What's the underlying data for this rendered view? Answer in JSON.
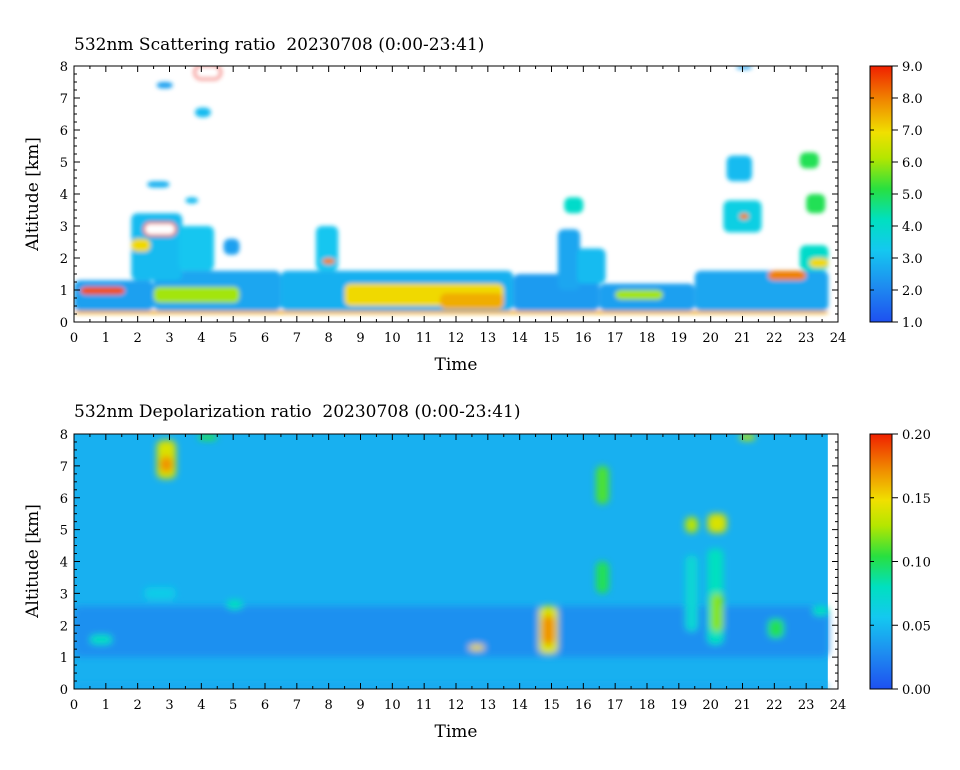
{
  "chart_data": [
    {
      "type": "heatmap",
      "title": "532nm Scattering ratio  20230708 (0:00-23:41)",
      "xlabel": "Time",
      "ylabel": "Altitude [km]",
      "xlim": [
        0,
        24
      ],
      "ylim": [
        0,
        8
      ],
      "x_ticks": [
        "0",
        "1",
        "2",
        "3",
        "4",
        "5",
        "6",
        "7",
        "8",
        "9",
        "10",
        "11",
        "12",
        "13",
        "14",
        "15",
        "16",
        "17",
        "18",
        "19",
        "20",
        "21",
        "22",
        "23",
        "24"
      ],
      "y_ticks": [
        "0",
        "1",
        "2",
        "3",
        "4",
        "5",
        "6",
        "7",
        "8"
      ],
      "data_end_time": 23.68,
      "colorbar": {
        "min": 1.0,
        "max": 9.0,
        "ticks": [
          "1.0",
          "2.0",
          "3.0",
          "4.0",
          "5.0",
          "6.0",
          "7.0",
          "8.0",
          "9.0"
        ]
      },
      "colors": {
        "background": "#ffffff",
        "low": "#1e50f0",
        "high": "#f02000"
      },
      "features": [
        {
          "t0": 0,
          "t1": 23.7,
          "z0": 0.25,
          "z1": 0.35,
          "value": 7.5
        },
        {
          "t0": 0,
          "t1": 2.5,
          "z0": 0.35,
          "z1": 1.3,
          "value": 2.5
        },
        {
          "t0": 0.2,
          "t1": 1.6,
          "z0": 0.85,
          "z1": 1.1,
          "value": 8.5
        },
        {
          "t0": 2.5,
          "t1": 6.5,
          "z0": 0.35,
          "z1": 1.6,
          "value": 2.6
        },
        {
          "t0": 2.5,
          "t1": 5.2,
          "z0": 0.6,
          "z1": 1.1,
          "value": 6.0
        },
        {
          "t0": 6.5,
          "t1": 13.8,
          "z0": 0.35,
          "z1": 1.6,
          "value": 2.8
        },
        {
          "t0": 8.5,
          "t1": 13.5,
          "z0": 0.5,
          "z1": 1.2,
          "value": 7.0
        },
        {
          "t0": 11.5,
          "t1": 13.5,
          "z0": 0.4,
          "z1": 0.9,
          "value": 7.5
        },
        {
          "t0": 13.8,
          "t1": 16.5,
          "z0": 0.35,
          "z1": 1.5,
          "value": 2.4
        },
        {
          "t0": 16.5,
          "t1": 19.5,
          "z0": 0.35,
          "z1": 1.2,
          "value": 2.5
        },
        {
          "t0": 17.0,
          "t1": 18.5,
          "z0": 0.7,
          "z1": 1.0,
          "value": 6.0
        },
        {
          "t0": 19.5,
          "t1": 23.7,
          "z0": 0.35,
          "z1": 1.6,
          "value": 2.6
        },
        {
          "t0": 21.8,
          "t1": 23.0,
          "z0": 1.3,
          "z1": 1.6,
          "value": 8.0
        },
        {
          "t0": 1.8,
          "t1": 3.4,
          "z0": 1.3,
          "z1": 3.4,
          "value": 3.0
        },
        {
          "t0": 2.2,
          "t1": 3.2,
          "z0": 2.7,
          "z1": 3.1,
          "value": 9.0
        },
        {
          "t0": 1.8,
          "t1": 2.4,
          "z0": 2.2,
          "z1": 2.6,
          "value": 7.0
        },
        {
          "t0": 3.3,
          "t1": 4.4,
          "z0": 1.6,
          "z1": 3.0,
          "value": 3.2
        },
        {
          "t0": 2.3,
          "t1": 3.0,
          "z0": 4.2,
          "z1": 4.4,
          "value": 2.8
        },
        {
          "t0": 3.5,
          "t1": 3.9,
          "z0": 3.7,
          "z1": 3.9,
          "value": 3.0
        },
        {
          "t0": 4.7,
          "t1": 5.2,
          "z0": 2.1,
          "z1": 2.6,
          "value": 2.5
        },
        {
          "t0": 7.6,
          "t1": 8.3,
          "z0": 1.6,
          "z1": 3.0,
          "value": 3.2
        },
        {
          "t0": 7.8,
          "t1": 8.2,
          "z0": 1.8,
          "z1": 2.0,
          "value": 8.0
        },
        {
          "t0": 2.6,
          "t1": 3.1,
          "z0": 7.3,
          "z1": 7.5,
          "value": 2.5
        },
        {
          "t0": 3.8,
          "t1": 4.6,
          "z0": 7.6,
          "z1": 8.0,
          "value": 9.0
        },
        {
          "t0": 3.8,
          "t1": 4.3,
          "z0": 6.4,
          "z1": 6.7,
          "value": 3.0
        },
        {
          "t0": 15.2,
          "t1": 15.9,
          "z0": 1.0,
          "z1": 2.9,
          "value": 2.6
        },
        {
          "t0": 15.4,
          "t1": 16.0,
          "z0": 3.4,
          "z1": 3.9,
          "value": 4.0
        },
        {
          "t0": 15.8,
          "t1": 16.7,
          "z0": 1.2,
          "z1": 2.3,
          "value": 3.0
        },
        {
          "t0": 20.5,
          "t1": 21.3,
          "z0": 4.4,
          "z1": 5.2,
          "value": 3.0
        },
        {
          "t0": 20.4,
          "t1": 21.6,
          "z0": 2.8,
          "z1": 3.8,
          "value": 3.5
        },
        {
          "t0": 20.9,
          "t1": 21.2,
          "z0": 3.2,
          "z1": 3.4,
          "value": 8.0
        },
        {
          "t0": 22.8,
          "t1": 23.4,
          "z0": 4.8,
          "z1": 5.3,
          "value": 5.0
        },
        {
          "t0": 23.0,
          "t1": 23.6,
          "z0": 3.4,
          "z1": 4.0,
          "value": 5.0
        },
        {
          "t0": 22.8,
          "t1": 23.7,
          "z0": 1.6,
          "z1": 2.4,
          "value": 4.0
        },
        {
          "t0": 23.1,
          "t1": 23.7,
          "z0": 1.7,
          "z1": 2.0,
          "value": 7.0
        },
        {
          "t0": 20.8,
          "t1": 21.3,
          "z0": 7.9,
          "z1": 8.0,
          "value": 2.5
        }
      ]
    },
    {
      "type": "heatmap",
      "title": "532nm Depolarization ratio  20230708 (0:00-23:41)",
      "xlabel": "Time",
      "ylabel": "Altitude [km]",
      "xlim": [
        0,
        24
      ],
      "ylim": [
        0,
        8
      ],
      "x_ticks": [
        "0",
        "1",
        "2",
        "3",
        "4",
        "5",
        "6",
        "7",
        "8",
        "9",
        "10",
        "11",
        "12",
        "13",
        "14",
        "15",
        "16",
        "17",
        "18",
        "19",
        "20",
        "21",
        "22",
        "23",
        "24"
      ],
      "y_ticks": [
        "0",
        "1",
        "2",
        "3",
        "4",
        "5",
        "6",
        "7",
        "8"
      ],
      "data_end_time": 23.68,
      "colorbar": {
        "min": 0.0,
        "max": 0.2,
        "ticks": [
          "0.00",
          "0.05",
          "0.10",
          "0.15",
          "0.20"
        ]
      },
      "colors": {
        "background": "#ffffff",
        "low": "#1e50f0",
        "high": "#f02000"
      },
      "background_value": 0.045,
      "features": [
        {
          "t0": 0,
          "t1": 23.7,
          "z0": 0.0,
          "z1": 0.15,
          "value": 0.04
        },
        {
          "t0": 0,
          "t1": 23.7,
          "z0": 1.0,
          "z1": 2.6,
          "value": 0.03
        },
        {
          "t0": 2.6,
          "t1": 3.2,
          "z0": 6.6,
          "z1": 7.8,
          "value": 0.14
        },
        {
          "t0": 2.7,
          "t1": 3.1,
          "z0": 6.8,
          "z1": 7.3,
          "value": 0.17
        },
        {
          "t0": 3.9,
          "t1": 4.5,
          "z0": 7.8,
          "z1": 8.0,
          "value": 0.1
        },
        {
          "t0": 14.6,
          "t1": 15.2,
          "z0": 1.1,
          "z1": 2.6,
          "value": 0.14
        },
        {
          "t0": 14.7,
          "t1": 15.1,
          "z0": 1.4,
          "z1": 2.3,
          "value": 0.17
        },
        {
          "t0": 16.4,
          "t1": 16.8,
          "z0": 5.8,
          "z1": 7.0,
          "value": 0.11
        },
        {
          "t0": 16.4,
          "t1": 16.8,
          "z0": 3.0,
          "z1": 4.0,
          "value": 0.1
        },
        {
          "t0": 19.2,
          "t1": 19.6,
          "z0": 1.8,
          "z1": 4.2,
          "value": 0.07
        },
        {
          "t0": 19.2,
          "t1": 19.6,
          "z0": 4.9,
          "z1": 5.4,
          "value": 0.13
        },
        {
          "t0": 19.9,
          "t1": 20.4,
          "z0": 1.4,
          "z1": 4.4,
          "value": 0.08
        },
        {
          "t0": 20.0,
          "t1": 20.4,
          "z0": 1.8,
          "z1": 3.0,
          "value": 0.12
        },
        {
          "t0": 19.9,
          "t1": 20.5,
          "z0": 4.9,
          "z1": 5.5,
          "value": 0.14
        },
        {
          "t0": 20.9,
          "t1": 21.4,
          "z0": 7.8,
          "z1": 8.0,
          "value": 0.13
        },
        {
          "t0": 21.8,
          "t1": 22.3,
          "z0": 1.6,
          "z1": 2.2,
          "value": 0.1
        },
        {
          "t0": 12.4,
          "t1": 12.9,
          "z0": 1.2,
          "z1": 1.4,
          "value": 0.15
        },
        {
          "t0": 0.5,
          "t1": 1.2,
          "z0": 1.4,
          "z1": 1.7,
          "value": 0.08
        },
        {
          "t0": 2.2,
          "t1": 3.2,
          "z0": 2.8,
          "z1": 3.2,
          "value": 0.06
        },
        {
          "t0": 4.8,
          "t1": 5.3,
          "z0": 2.5,
          "z1": 2.8,
          "value": 0.08
        },
        {
          "t0": 23.2,
          "t1": 23.7,
          "z0": 2.3,
          "z1": 2.6,
          "value": 0.08
        }
      ]
    }
  ]
}
